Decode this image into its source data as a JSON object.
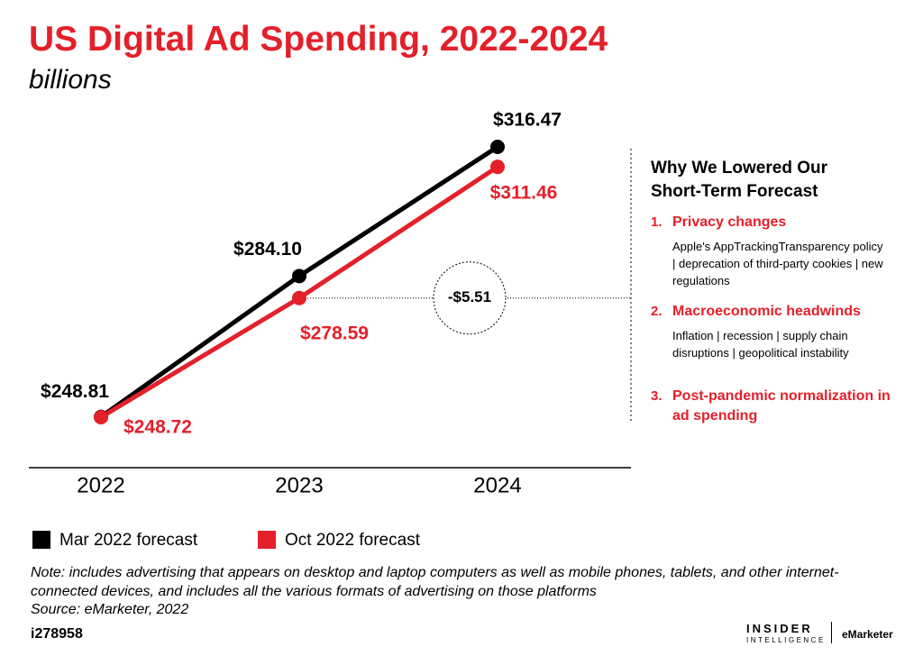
{
  "chart_data": {
    "type": "line",
    "title": "US Digital Ad Spending, 2022-2024",
    "subtitle": "billions",
    "categories": [
      "2022",
      "2023",
      "2024"
    ],
    "series": [
      {
        "name": "Mar 2022 forecast",
        "color": "#000000",
        "values": [
          248.81,
          284.1,
          316.47
        ],
        "value_labels": [
          "$248.81",
          "$284.10",
          "$316.47"
        ]
      },
      {
        "name": "Oct 2022 forecast",
        "color": "#e4202a",
        "values": [
          248.72,
          278.59,
          311.46
        ],
        "value_labels": [
          "$248.72",
          "$278.59",
          "$311.46"
        ]
      }
    ],
    "annotation": "-$5.51",
    "panel": {
      "heading": "Why We Lowered Our Short-Term Forecast",
      "items": [
        {
          "number": "1.",
          "title": "Privacy changes",
          "text": "Apple's AppTrackingTransparency policy | deprecation of third-party cookies | new regulations"
        },
        {
          "number": "2.",
          "title": "Macroeconomic headwinds",
          "text": "Inflation | recession | supply chain disruptions | geopolitical instability"
        },
        {
          "number": "3.",
          "title": "Post-pandemic normalization in ad spending",
          "text": null
        }
      ]
    },
    "note": "Note: includes advertising that appears on desktop and laptop computers as well as mobile phones, tablets, and other internet-connected devices, and includes all the various formats of advertising on those platforms",
    "source": "Source: eMarketer, 2022",
    "chart_id": "i278958",
    "logo": [
      "INSIDER",
      "INTELLIGENCE",
      "eMarketer"
    ]
  }
}
